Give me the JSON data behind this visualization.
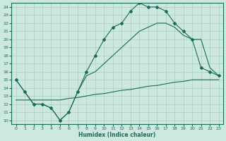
{
  "xlabel": "Humidex (Indice chaleur)",
  "background_color": "#cce8df",
  "grid_color": "#aacfbf",
  "line_color": "#1a6b5a",
  "xlim": [
    -0.5,
    23.5
  ],
  "ylim": [
    9.5,
    24.5
  ],
  "xticks": [
    0,
    1,
    2,
    3,
    4,
    5,
    6,
    7,
    8,
    9,
    10,
    11,
    12,
    13,
    14,
    15,
    16,
    17,
    18,
    19,
    20,
    21,
    22,
    23
  ],
  "yticks": [
    10,
    11,
    12,
    13,
    14,
    15,
    16,
    17,
    18,
    19,
    20,
    21,
    22,
    23,
    24
  ],
  "line1_x": [
    0,
    1,
    2,
    3,
    4,
    5,
    6,
    7,
    8,
    9,
    10,
    11,
    12,
    13,
    14,
    15,
    16,
    17,
    18,
    19,
    20,
    21,
    22,
    23
  ],
  "line1_y": [
    15.0,
    13.5,
    12.0,
    12.0,
    11.5,
    10.0,
    11.0,
    13.5,
    16.0,
    18.0,
    20.0,
    21.5,
    22.0,
    23.5,
    24.5,
    24.0,
    24.0,
    23.5,
    22.0,
    21.0,
    20.0,
    16.5,
    16.0,
    15.5
  ],
  "line2_x": [
    0,
    1,
    2,
    3,
    4,
    5,
    6,
    7,
    8,
    9,
    10,
    11,
    12,
    13,
    14,
    15,
    16,
    17,
    18,
    19,
    20,
    21,
    22,
    23
  ],
  "line2_y": [
    15.0,
    13.5,
    12.0,
    12.0,
    11.5,
    10.0,
    11.0,
    13.5,
    15.5,
    16.0,
    17.0,
    18.0,
    19.0,
    20.0,
    21.0,
    21.5,
    22.0,
    22.0,
    21.5,
    20.5,
    20.0,
    20.0,
    16.5,
    15.5
  ],
  "line3_x": [
    0,
    1,
    2,
    3,
    4,
    5,
    6,
    7,
    8,
    9,
    10,
    11,
    12,
    13,
    14,
    15,
    16,
    17,
    18,
    19,
    20,
    21,
    22,
    23
  ],
  "line3_y": [
    12.5,
    12.5,
    12.5,
    12.5,
    12.5,
    12.5,
    12.7,
    12.8,
    13.0,
    13.2,
    13.3,
    13.5,
    13.7,
    13.8,
    14.0,
    14.2,
    14.3,
    14.5,
    14.7,
    14.8,
    15.0,
    15.0,
    15.0,
    15.0
  ]
}
